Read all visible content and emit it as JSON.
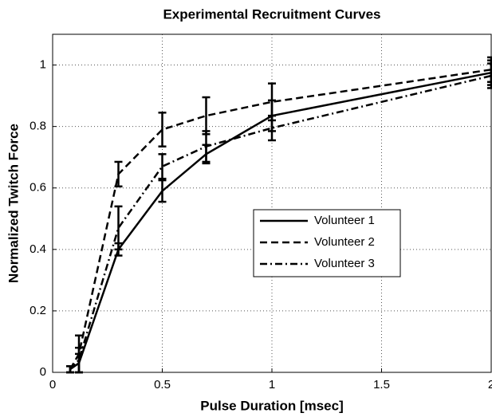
{
  "chart_data": {
    "type": "line",
    "title": "Experimental Recruitment Curves",
    "x_label": "Pulse Duration [msec]",
    "y_label": "Normalized Twitch Force",
    "x": [
      0.08,
      0.12,
      0.3,
      0.5,
      0.7,
      1,
      2
    ],
    "series": [
      {
        "name": "Volunteer 1",
        "color": "#000000",
        "dash": "solid",
        "values": [
          0.01,
          0.03,
          0.4,
          0.59,
          0.71,
          0.835,
          0.975
        ],
        "errors": [
          0.01,
          0.03,
          0.02,
          0.035,
          0.03,
          0.05,
          0.04
        ]
      },
      {
        "name": "Volunteer 2",
        "color": "#000000",
        "dash": "dashed",
        "values": [
          0.01,
          0.06,
          0.645,
          0.79,
          0.835,
          0.88,
          0.985
        ],
        "errors": [
          0.01,
          0.06,
          0.04,
          0.055,
          0.06,
          0.06,
          0.04
        ]
      },
      {
        "name": "Volunteer 3",
        "color": "#000000",
        "dash": "dashdot",
        "values": [
          0.01,
          0.04,
          0.47,
          0.67,
          0.735,
          0.795,
          0.965
        ],
        "errors": [
          0.01,
          0.04,
          0.07,
          0.04,
          0.05,
          0.04,
          0.04
        ]
      }
    ],
    "xlim": [
      0,
      2
    ],
    "xticks": [
      0,
      0.5,
      1,
      1.5,
      2
    ],
    "ylim": [
      0,
      1.1
    ],
    "yticks": [
      0,
      0.2,
      0.4,
      0.6,
      0.8,
      1
    ],
    "grid": true,
    "legend_position": "center-right"
  }
}
